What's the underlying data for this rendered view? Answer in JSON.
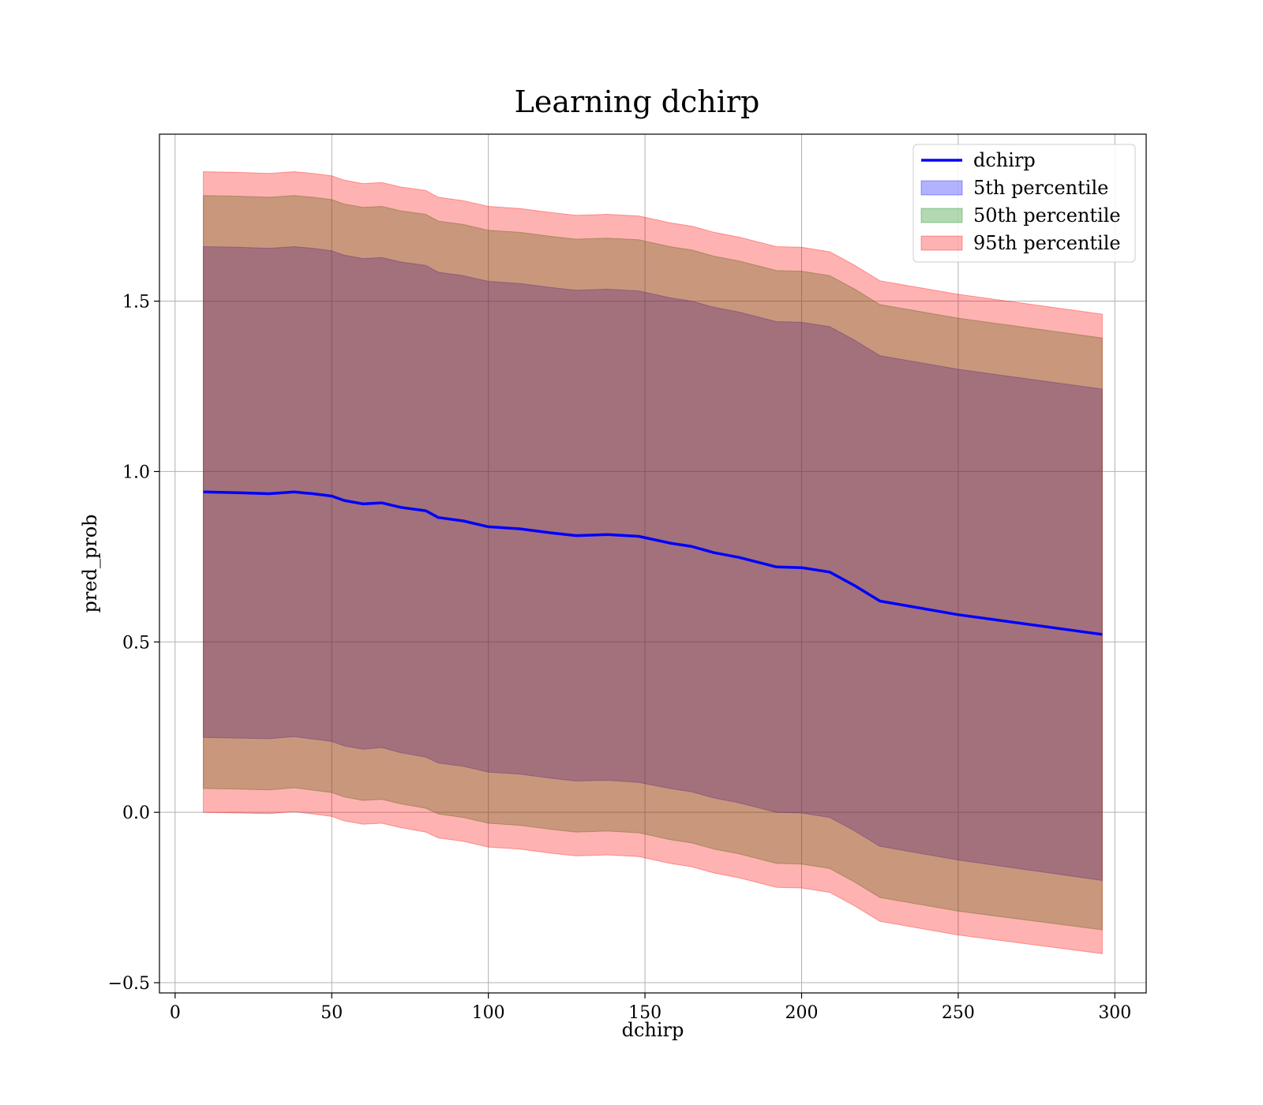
{
  "chart_data": {
    "type": "area",
    "title": "Learning dchirp",
    "xlabel": "dchirp",
    "ylabel": "pred_prob",
    "xlim": [
      -5,
      310
    ],
    "ylim": [
      -0.53,
      1.99
    ],
    "xticks": [
      0,
      50,
      100,
      150,
      200,
      250,
      300
    ],
    "xtick_labels": [
      "0",
      "50",
      "100",
      "150",
      "200",
      "250",
      "300"
    ],
    "yticks": [
      -0.5,
      0.0,
      0.5,
      1.0,
      1.5
    ],
    "ytick_labels": [
      "−0.5",
      "0.0",
      "0.5",
      "1.0",
      "1.5"
    ],
    "grid": true,
    "legend_position": "top-right",
    "x": [
      9,
      20,
      30,
      38,
      44,
      50,
      54,
      60,
      66,
      72,
      80,
      84,
      92,
      100,
      110,
      120,
      128,
      138,
      148,
      158,
      165,
      172,
      180,
      192,
      200,
      209,
      217,
      225,
      250,
      296
    ],
    "line": {
      "name": "dchirp",
      "color": "#0000ff",
      "values": [
        0.94,
        0.938,
        0.935,
        0.94,
        0.935,
        0.928,
        0.915,
        0.905,
        0.908,
        0.895,
        0.885,
        0.865,
        0.855,
        0.838,
        0.832,
        0.82,
        0.812,
        0.815,
        0.81,
        0.79,
        0.78,
        0.762,
        0.748,
        0.72,
        0.718,
        0.705,
        0.665,
        0.62,
        0.58,
        0.522
      ]
    },
    "bands": [
      {
        "name": "5th percentile",
        "color": "#0000ff",
        "opacity": 0.3,
        "lower": [
          0.22,
          0.218,
          0.216,
          0.222,
          0.215,
          0.208,
          0.195,
          0.185,
          0.19,
          0.175,
          0.162,
          0.145,
          0.135,
          0.118,
          0.112,
          0.1,
          0.092,
          0.094,
          0.088,
          0.07,
          0.06,
          0.042,
          0.028,
          0.0,
          -0.002,
          -0.015,
          -0.055,
          -0.1,
          -0.14,
          -0.2
        ],
        "upper": [
          1.66,
          1.658,
          1.655,
          1.66,
          1.655,
          1.648,
          1.635,
          1.625,
          1.628,
          1.615,
          1.605,
          1.585,
          1.575,
          1.558,
          1.552,
          1.54,
          1.532,
          1.535,
          1.53,
          1.51,
          1.5,
          1.482,
          1.468,
          1.44,
          1.438,
          1.425,
          1.385,
          1.34,
          1.3,
          1.242
        ]
      },
      {
        "name": "50th percentile",
        "color": "#008000",
        "opacity": 0.3,
        "lower": [
          0.07,
          0.068,
          0.066,
          0.072,
          0.065,
          0.058,
          0.045,
          0.035,
          0.038,
          0.025,
          0.012,
          -0.005,
          -0.015,
          -0.032,
          -0.038,
          -0.05,
          -0.058,
          -0.055,
          -0.06,
          -0.08,
          -0.09,
          -0.108,
          -0.122,
          -0.15,
          -0.152,
          -0.165,
          -0.205,
          -0.25,
          -0.29,
          -0.345
        ],
        "upper": [
          1.81,
          1.808,
          1.805,
          1.81,
          1.805,
          1.798,
          1.785,
          1.775,
          1.778,
          1.765,
          1.755,
          1.735,
          1.725,
          1.708,
          1.702,
          1.69,
          1.682,
          1.685,
          1.68,
          1.66,
          1.65,
          1.632,
          1.618,
          1.59,
          1.588,
          1.575,
          1.535,
          1.49,
          1.45,
          1.392
        ]
      },
      {
        "name": "95th percentile",
        "color": "#ff0000",
        "opacity": 0.3,
        "lower": [
          0.0,
          -0.002,
          -0.004,
          0.002,
          -0.005,
          -0.012,
          -0.025,
          -0.035,
          -0.032,
          -0.045,
          -0.058,
          -0.075,
          -0.085,
          -0.102,
          -0.108,
          -0.12,
          -0.128,
          -0.125,
          -0.13,
          -0.15,
          -0.16,
          -0.178,
          -0.192,
          -0.22,
          -0.222,
          -0.235,
          -0.275,
          -0.32,
          -0.36,
          -0.415
        ],
        "upper": [
          1.88,
          1.878,
          1.875,
          1.88,
          1.875,
          1.868,
          1.855,
          1.845,
          1.848,
          1.835,
          1.825,
          1.805,
          1.795,
          1.778,
          1.772,
          1.76,
          1.752,
          1.755,
          1.75,
          1.73,
          1.72,
          1.702,
          1.688,
          1.66,
          1.658,
          1.645,
          1.605,
          1.56,
          1.52,
          1.462
        ]
      }
    ],
    "legend": [
      "dchirp",
      "5th percentile",
      "50th percentile",
      "95th percentile"
    ]
  }
}
